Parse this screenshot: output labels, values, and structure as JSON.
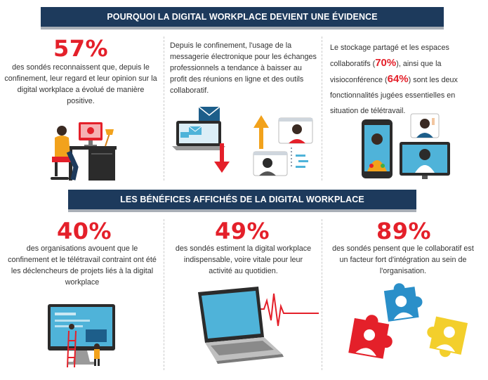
{
  "section1": {
    "title": "POURQUOI LA DIGITAL WORKPLACE DEVIENT UNE ÉVIDENCE",
    "col1": {
      "stat": "57%",
      "text": "des sondés reconnaissent que, depuis le confinement, leur regard et leur opinion sur la digital workplace a évolué de manière positive."
    },
    "col2": {
      "text": "Depuis le confinement, l'usage de la messagerie électronique pour les échanges professionnels a tendance à baisser au profit des réunions en ligne et des outils collaboratif."
    },
    "col3": {
      "text_a": "Le stockage partagé et les espaces collaboratifs (",
      "stat_a": "70%",
      "text_b": "), ainsi que la visioconférence (",
      "stat_b": "64%",
      "text_c": ") sont les deux fonctionnalités jugées essentielles en situation de télétravail."
    }
  },
  "section2": {
    "title": "LES BÉNÉFICES AFFICHÉS DE LA DIGITAL WORKPLACE",
    "col1": {
      "stat": "40%",
      "text": "des organisations avouent que le confinement et le télétravail contraint ont été les déclencheurs de projets liés à la digital workplace"
    },
    "col2": {
      "stat": "49%",
      "text": "des sondés estiment la digital workplace indispensable, voire vitale pour leur activité au quotidien."
    },
    "col3": {
      "stat": "89%",
      "text": "des sondés pensent que le collaboratif est un facteur fort d'intégration au sein de l'organisation."
    }
  },
  "colors": {
    "banner": "#1d3a5c",
    "accent_red": "#e4202a",
    "screen_blue": "#4fb3d9",
    "orange": "#f2a21c",
    "yellow": "#f3cf2c"
  }
}
